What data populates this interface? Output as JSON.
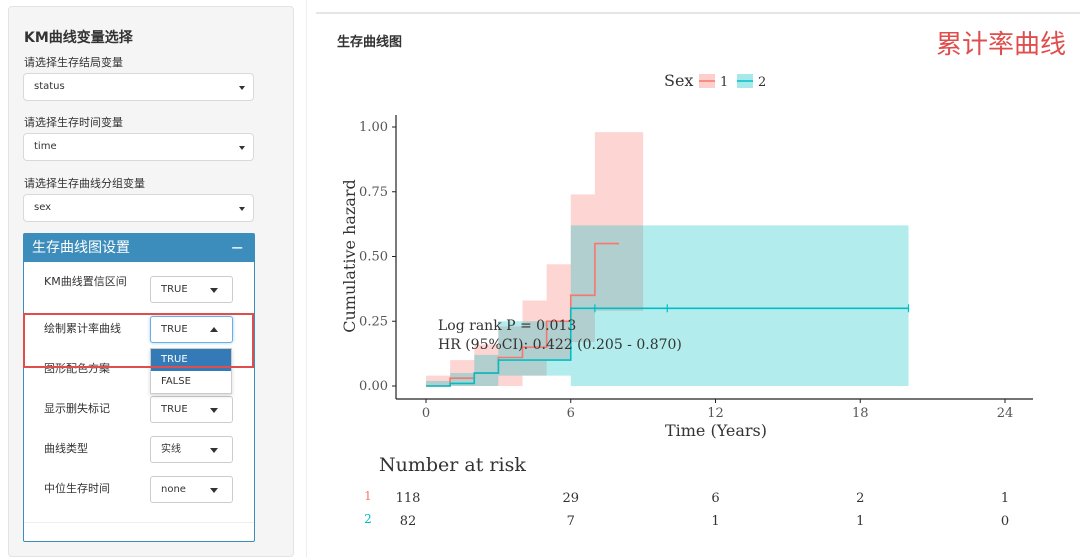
{
  "sidebar": {
    "title": "KM曲线变量选择",
    "fields": [
      {
        "label": "请选择生存结局变量",
        "value": "status"
      },
      {
        "label": "请选择生存时间变量",
        "value": "time"
      },
      {
        "label": "请选择生存曲线分组变量",
        "value": "sex"
      }
    ],
    "settings_box": {
      "title": "生存曲线图设置",
      "collapse_icon": "minus-icon",
      "rows": [
        {
          "label": "KM曲线置信区间",
          "value": "TRUE"
        },
        {
          "label": "绘制累计率曲线",
          "value": "TRUE"
        },
        {
          "label": "图形配色方案",
          "value": ""
        },
        {
          "label": "显示删失标记",
          "value": "TRUE"
        },
        {
          "label": "曲线类型",
          "value": "实线"
        },
        {
          "label": "中位生存时间",
          "value": "none"
        }
      ],
      "dropdown_options": [
        "TRUE",
        "FALSE"
      ],
      "dropdown_selected": "TRUE"
    }
  },
  "main": {
    "panel_title": "生存曲线图",
    "caption": "累计率曲线"
  },
  "colors": {
    "accent": "#3c8dbc",
    "group1": "#f8766d",
    "group2": "#00bfc4",
    "highlight": "#e04d4d"
  },
  "chart_data": {
    "type": "line",
    "xlabel": "Time (Years)",
    "ylabel": "Cumulative hazard",
    "xlim": [
      0,
      24
    ],
    "ylim": [
      0,
      1
    ],
    "xticks": [
      0,
      6,
      12,
      18,
      24
    ],
    "yticks": [
      0.0,
      0.25,
      0.5,
      0.75,
      1.0
    ],
    "ytick_labels": [
      "0.00",
      "0.25",
      "0.50",
      "0.75",
      "1.00"
    ],
    "legend": {
      "title": "Sex",
      "position": "top",
      "labels": [
        "1",
        "2"
      ]
    },
    "series": [
      {
        "name": "1",
        "color": "#f8766d",
        "steps": [
          [
            0,
            0.0
          ],
          [
            1,
            0.03
          ],
          [
            2,
            0.05
          ],
          [
            3,
            0.11
          ],
          [
            4,
            0.15
          ],
          [
            5,
            0.25
          ],
          [
            6,
            0.35
          ],
          [
            7,
            0.55
          ],
          [
            8,
            0.55
          ]
        ],
        "ci_upper": [
          [
            0,
            0.04
          ],
          [
            1,
            0.1
          ],
          [
            2,
            0.16
          ],
          [
            3,
            0.23
          ],
          [
            4,
            0.33
          ],
          [
            5,
            0.47
          ],
          [
            6,
            0.74
          ],
          [
            7,
            0.98
          ],
          [
            9,
            0.98
          ]
        ],
        "ci_lower": [
          [
            0,
            0.0
          ],
          [
            1,
            0.0
          ],
          [
            2,
            0.0
          ],
          [
            3,
            0.0
          ],
          [
            4,
            0.04
          ],
          [
            5,
            0.1
          ],
          [
            6,
            0.17
          ],
          [
            7,
            0.29
          ],
          [
            9,
            0.29
          ]
        ]
      },
      {
        "name": "2",
        "color": "#00bfc4",
        "steps": [
          [
            0,
            0.0
          ],
          [
            1,
            0.01
          ],
          [
            2,
            0.05
          ],
          [
            3,
            0.1
          ],
          [
            6,
            0.3
          ],
          [
            20,
            0.3
          ]
        ],
        "ci_upper": [
          [
            0,
            0.02
          ],
          [
            1,
            0.05
          ],
          [
            2,
            0.12
          ],
          [
            3,
            0.25
          ],
          [
            6,
            0.62
          ],
          [
            20,
            0.62
          ]
        ],
        "ci_lower": [
          [
            0,
            0.0
          ],
          [
            1,
            0.0
          ],
          [
            2,
            0.0
          ],
          [
            3,
            0.04
          ],
          [
            6,
            0.0
          ],
          [
            20,
            0.0
          ]
        ],
        "censor_x": [
          7,
          10,
          20
        ]
      }
    ],
    "annotations": [
      "Log rank P = 0.013",
      "HR (95%CI): 0.422 (0.205 - 0.870)"
    ],
    "risk_table": {
      "title": "Number at risk",
      "times": [
        0,
        6,
        12,
        18,
        24
      ],
      "rows": [
        {
          "group": "1",
          "counts": [
            "118",
            "29",
            "6",
            "2",
            "1"
          ]
        },
        {
          "group": "2",
          "counts": [
            "82",
            "7",
            "1",
            "1",
            "0"
          ]
        }
      ]
    }
  }
}
